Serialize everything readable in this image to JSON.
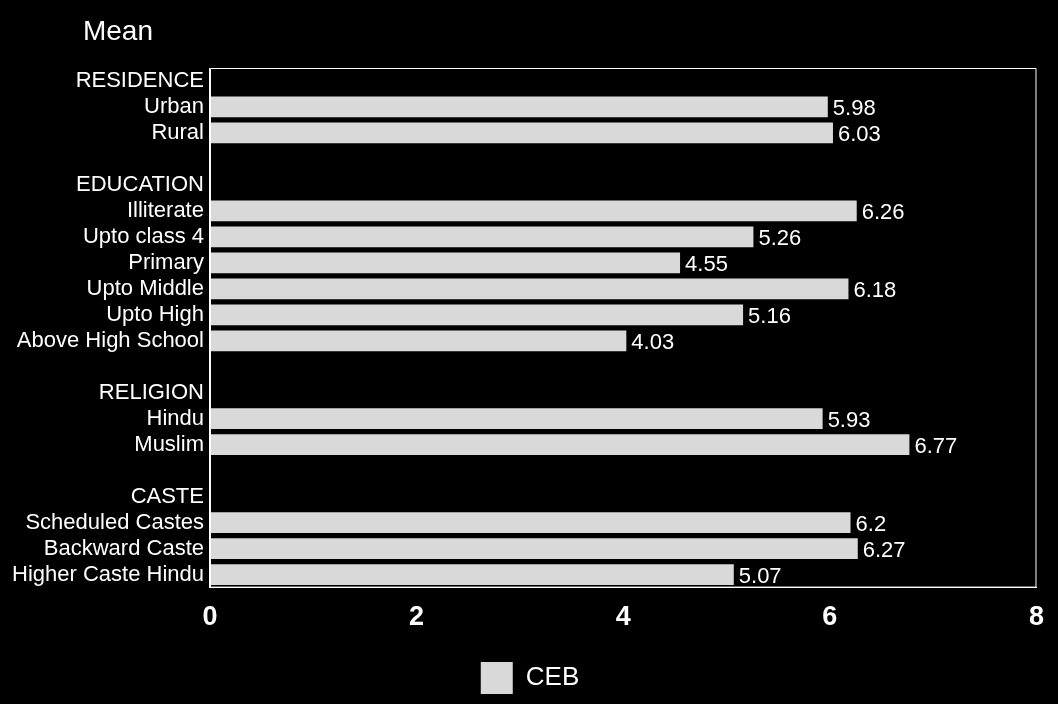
{
  "chart_data": {
    "type": "bar",
    "orientation": "horizontal",
    "title": "Mean",
    "categories": [
      "RESIDENCE",
      "Urban",
      "Rural",
      null,
      "EDUCATION",
      "Illiterate",
      "Upto class 4",
      "Primary",
      "Upto Middle",
      "Upto High",
      "Above High School",
      null,
      "RELIGION",
      "Hindu",
      "Muslim",
      null,
      "CASTE",
      "Scheduled Castes",
      "Backward Caste",
      "Higher Caste Hindu"
    ],
    "series": [
      {
        "name": "CEB",
        "color": "#d9d9d9",
        "values": [
          null,
          5.98,
          6.03,
          null,
          null,
          6.26,
          5.26,
          4.55,
          6.18,
          5.16,
          4.03,
          null,
          null,
          5.93,
          6.77,
          null,
          null,
          6.2,
          6.27,
          5.07
        ]
      }
    ],
    "xlim": [
      0,
      8
    ],
    "xticks": [
      0,
      2,
      4,
      6,
      8
    ],
    "data_labels": true,
    "legend": "bottom",
    "grid": false
  }
}
